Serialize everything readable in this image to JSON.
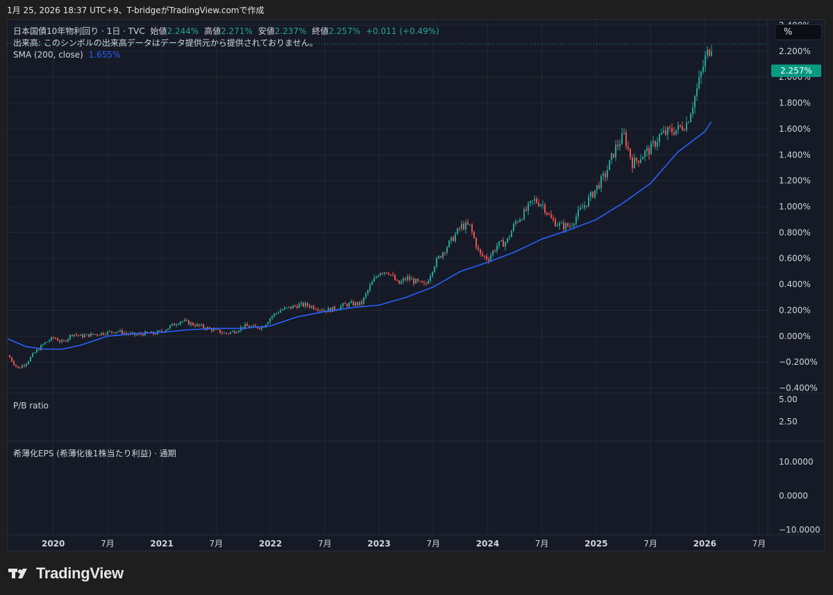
{
  "header": {
    "title": "1月 25, 2026 18:37 UTC+9、T-bridgeがTradingView.comで作成"
  },
  "legend": {
    "symbol": "日本国債10年物利回り · 1日 · TVC",
    "open_label": "始値",
    "open": "2.244%",
    "high_label": "高値",
    "high": "2.271%",
    "low_label": "安値",
    "low": "2.237%",
    "close_label": "終値",
    "close": "2.257%",
    "change": "+0.011 (+0.49%)",
    "volume_note": "出来高: このシンボルの出来高データはデータ提供元から提供されておりません。",
    "sma_label": "SMA (200, close)",
    "sma_value": "1.655%"
  },
  "scale_button": "%",
  "price_tag": "2.257%",
  "panes": {
    "pb_label": "P/B ratio",
    "pb_ticks": [
      "5.00",
      "2.50"
    ],
    "eps_label": "希薄化EPS (希薄化後1株当たり利益) · 通期",
    "eps_ticks": [
      "10.0000",
      "0.0000",
      "−10.0000"
    ]
  },
  "footer": {
    "brand": "TradingView"
  },
  "colors": {
    "up": "#26a69a",
    "down": "#ef5350",
    "sma": "#2962ff",
    "background": "#151a26",
    "grid": "#232836"
  },
  "chart_data": {
    "type": "line",
    "title": "日本国債10年物利回り",
    "ylabel": "%",
    "ylim": [
      -0.44,
      2.44
    ],
    "yticks": [
      "2.400%",
      "2.200%",
      "2.000%",
      "1.800%",
      "1.600%",
      "1.400%",
      "1.200%",
      "1.000%",
      "0.800%",
      "0.600%",
      "0.400%",
      "0.200%",
      "0.000%",
      "−0.200%",
      "−0.400%"
    ],
    "ytick_values": [
      2.4,
      2.2,
      2.0,
      1.8,
      1.6,
      1.4,
      1.2,
      1.0,
      0.8,
      0.6,
      0.4,
      0.2,
      0.0,
      -0.2,
      -0.4
    ],
    "xticks": [
      {
        "label": "2020",
        "t": 2020.0,
        "bold": true
      },
      {
        "label": "7月",
        "t": 2020.5,
        "bold": false
      },
      {
        "label": "2021",
        "t": 2021.0,
        "bold": true
      },
      {
        "label": "7月",
        "t": 2021.5,
        "bold": false
      },
      {
        "label": "2022",
        "t": 2022.0,
        "bold": true
      },
      {
        "label": "7月",
        "t": 2022.5,
        "bold": false
      },
      {
        "label": "2023",
        "t": 2023.0,
        "bold": true
      },
      {
        "label": "7月",
        "t": 2023.5,
        "bold": false
      },
      {
        "label": "2024",
        "t": 2024.0,
        "bold": true
      },
      {
        "label": "7月",
        "t": 2024.5,
        "bold": false
      },
      {
        "label": "2025",
        "t": 2025.0,
        "bold": true
      },
      {
        "label": "7月",
        "t": 2025.5,
        "bold": false
      },
      {
        "label": "2026",
        "t": 2026.0,
        "bold": true
      },
      {
        "label": "7月",
        "t": 2026.5,
        "bold": false
      }
    ],
    "xlim": [
      2019.58,
      2026.58
    ],
    "series": [
      {
        "name": "日本国債10年物利回り",
        "style": "candles",
        "x": [
          2019.58,
          2019.67,
          2019.75,
          2019.83,
          2019.92,
          2020.0,
          2020.08,
          2020.17,
          2020.25,
          2020.33,
          2020.42,
          2020.5,
          2020.58,
          2020.67,
          2020.75,
          2020.83,
          2020.92,
          2021.0,
          2021.08,
          2021.17,
          2021.25,
          2021.33,
          2021.42,
          2021.5,
          2021.58,
          2021.67,
          2021.75,
          2021.83,
          2021.92,
          2022.0,
          2022.08,
          2022.17,
          2022.25,
          2022.33,
          2022.42,
          2022.5,
          2022.58,
          2022.67,
          2022.75,
          2022.83,
          2022.92,
          2023.0,
          2023.04,
          2023.08,
          2023.17,
          2023.25,
          2023.33,
          2023.42,
          2023.5,
          2023.58,
          2023.67,
          2023.75,
          2023.83,
          2023.92,
          2024.0,
          2024.08,
          2024.17,
          2024.25,
          2024.33,
          2024.42,
          2024.5,
          2024.58,
          2024.67,
          2024.75,
          2024.83,
          2024.92,
          2025.0,
          2025.08,
          2025.17,
          2025.25,
          2025.33,
          2025.42,
          2025.5,
          2025.58,
          2025.67,
          2025.75,
          2025.83,
          2025.92,
          2026.0,
          2026.06
        ],
        "y": [
          -0.15,
          -0.25,
          -0.2,
          -0.12,
          -0.05,
          -0.01,
          -0.05,
          0.02,
          0.0,
          0.01,
          0.02,
          0.03,
          0.04,
          0.02,
          0.01,
          0.02,
          0.02,
          0.04,
          0.08,
          0.12,
          0.1,
          0.08,
          0.06,
          0.04,
          0.02,
          0.04,
          0.08,
          0.07,
          0.07,
          0.15,
          0.2,
          0.22,
          0.24,
          0.24,
          0.22,
          0.2,
          0.21,
          0.24,
          0.25,
          0.25,
          0.4,
          0.5,
          0.5,
          0.5,
          0.4,
          0.45,
          0.42,
          0.39,
          0.55,
          0.65,
          0.75,
          0.85,
          0.85,
          0.63,
          0.6,
          0.7,
          0.73,
          0.88,
          0.95,
          1.05,
          1.02,
          0.9,
          0.85,
          0.85,
          0.95,
          1.05,
          1.15,
          1.25,
          1.45,
          1.55,
          1.33,
          1.4,
          1.45,
          1.55,
          1.58,
          1.6,
          1.65,
          1.9,
          2.15,
          2.257
        ]
      },
      {
        "name": "SMA (200, close)",
        "style": "line",
        "x": [
          2019.58,
          2019.75,
          2019.92,
          2020.08,
          2020.25,
          2020.5,
          2020.75,
          2021.0,
          2021.25,
          2021.5,
          2021.75,
          2022.0,
          2022.25,
          2022.5,
          2022.75,
          2023.0,
          2023.25,
          2023.5,
          2023.75,
          2024.0,
          2024.25,
          2024.5,
          2024.75,
          2025.0,
          2025.25,
          2025.5,
          2025.75,
          2026.0,
          2026.06
        ],
        "y": [
          -0.02,
          -0.08,
          -0.1,
          -0.1,
          -0.07,
          0.0,
          0.02,
          0.03,
          0.05,
          0.06,
          0.06,
          0.08,
          0.15,
          0.19,
          0.22,
          0.24,
          0.3,
          0.38,
          0.5,
          0.57,
          0.65,
          0.75,
          0.82,
          0.9,
          1.03,
          1.18,
          1.42,
          1.58,
          1.655
        ]
      }
    ],
    "current_value": 2.257
  }
}
